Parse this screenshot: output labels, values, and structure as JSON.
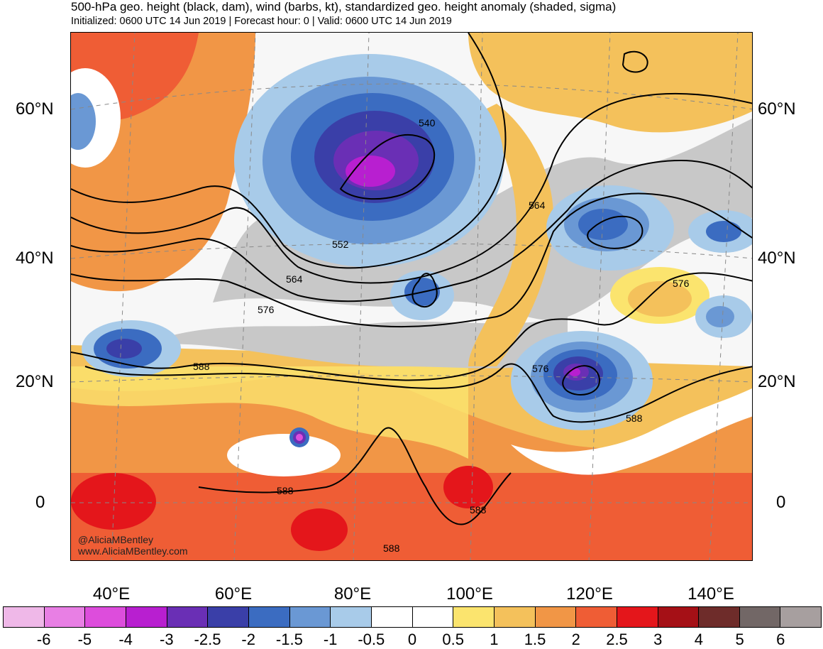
{
  "header": {
    "title": "500-hPa geo. height (black, dam), wind (barbs, kt), standardized geo. height anomaly (shaded, sigma)",
    "subtitle": "Initialized: 0600 UTC 14 Jun 2019 | Forecast hour: 0 | Valid: 0600 UTC 14 Jun 2019"
  },
  "map": {
    "lat_labels": [
      "60°N",
      "40°N",
      "20°N",
      "0"
    ],
    "lon_labels": [
      "40°E",
      "60°E",
      "80°E",
      "100°E",
      "120°E",
      "140°E"
    ],
    "contour_labels": [
      "540",
      "552",
      "564",
      "564",
      "576",
      "576",
      "576",
      "588",
      "588",
      "588",
      "588",
      "588"
    ],
    "credit_handle": "@AliciaMBentley",
    "credit_url": "www.AliciaMBentley.com"
  },
  "colorbar": {
    "labels": [
      "-6",
      "-5",
      "-4",
      "-3",
      "-2.5",
      "-2",
      "-1.5",
      "-1",
      "-0.5",
      "0",
      "0.5",
      "1",
      "1.5",
      "2",
      "2.5",
      "3",
      "4",
      "5",
      "6"
    ],
    "colors": [
      "#efb8e8",
      "#e87fe4",
      "#dd4ddc",
      "#b81fd0",
      "#6a2fb5",
      "#3a3fa8",
      "#3b6cc1",
      "#6a98d4",
      "#a8cbe9",
      "#ffffff",
      "#ffffff",
      "#fbe46e",
      "#f4c15b",
      "#f19646",
      "#ef5d35",
      "#e4161b",
      "#a51016",
      "#6e2c2a",
      "#726766",
      "#a79f9f"
    ]
  },
  "colors": {
    "negative_anomaly": "#3a3fa8",
    "positive_anomaly": "#ef5d35",
    "neutral_gray": "#c8c8c8"
  }
}
